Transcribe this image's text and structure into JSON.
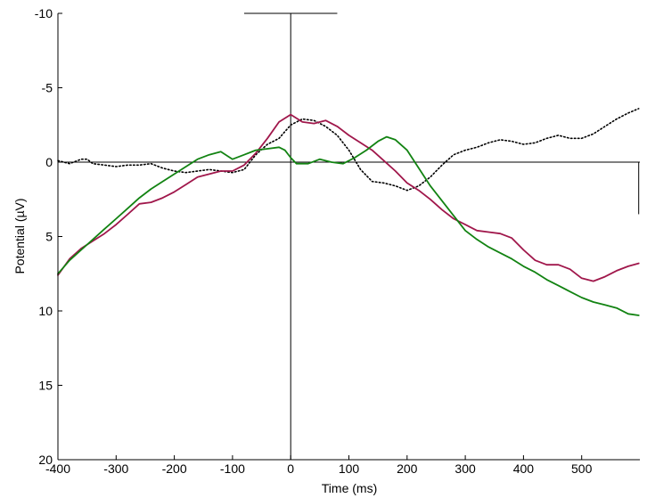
{
  "chart_data": {
    "type": "line",
    "title": "",
    "xlabel": "Time (ms)",
    "ylabel": "Potential (µV)",
    "xlim": [
      -400,
      600
    ],
    "ylim": [
      -10,
      20
    ],
    "y_axis_inverted": true,
    "grid": false,
    "legend": "none",
    "x_ticks": [
      -400,
      -300,
      -200,
      -100,
      0,
      100,
      200,
      300,
      400,
      500
    ],
    "x_tick_labels": [
      "-400",
      "-300",
      "-200",
      "-100",
      "0",
      "100",
      "200",
      "300",
      "400",
      "500"
    ],
    "y_ticks": [
      -10,
      -5,
      0,
      5,
      10,
      15,
      20
    ],
    "y_tick_labels": [
      "-10",
      "-5",
      "0",
      "5",
      "10",
      "15",
      "20"
    ],
    "reference_lines": {
      "zero_time_vertical": 0,
      "zero_potential_horizontal": 0,
      "scale_bar_top": {
        "x_from": -80,
        "x_to": 80,
        "y": -10
      },
      "scale_bar_right": {
        "x": 598,
        "y_from": 0,
        "y_to": 3.5
      }
    },
    "series": [
      {
        "color": "#000000",
        "style": "dotted",
        "points": [
          [
            -400,
            -0.1
          ],
          [
            -380,
            0.1
          ],
          [
            -360,
            -0.2
          ],
          [
            -350,
            -0.2
          ],
          [
            -340,
            0.1
          ],
          [
            -320,
            0.2
          ],
          [
            -300,
            0.3
          ],
          [
            -280,
            0.2
          ],
          [
            -260,
            0.2
          ],
          [
            -240,
            0.1
          ],
          [
            -220,
            0.4
          ],
          [
            -200,
            0.6
          ],
          [
            -180,
            0.7
          ],
          [
            -160,
            0.6
          ],
          [
            -140,
            0.5
          ],
          [
            -120,
            0.6
          ],
          [
            -100,
            0.7
          ],
          [
            -80,
            0.5
          ],
          [
            -60,
            -0.5
          ],
          [
            -40,
            -1.2
          ],
          [
            -20,
            -1.6
          ],
          [
            0,
            -2.5
          ],
          [
            20,
            -2.9
          ],
          [
            40,
            -2.8
          ],
          [
            60,
            -2.4
          ],
          [
            80,
            -1.8
          ],
          [
            100,
            -0.8
          ],
          [
            120,
            0.5
          ],
          [
            140,
            1.3
          ],
          [
            160,
            1.4
          ],
          [
            180,
            1.6
          ],
          [
            200,
            1.9
          ],
          [
            220,
            1.6
          ],
          [
            240,
            1.0
          ],
          [
            260,
            0.2
          ],
          [
            280,
            -0.5
          ],
          [
            300,
            -0.8
          ],
          [
            320,
            -1.0
          ],
          [
            340,
            -1.3
          ],
          [
            360,
            -1.5
          ],
          [
            380,
            -1.4
          ],
          [
            400,
            -1.2
          ],
          [
            420,
            -1.3
          ],
          [
            440,
            -1.6
          ],
          [
            460,
            -1.8
          ],
          [
            480,
            -1.6
          ],
          [
            500,
            -1.6
          ],
          [
            520,
            -1.9
          ],
          [
            540,
            -2.4
          ],
          [
            560,
            -2.9
          ],
          [
            580,
            -3.3
          ],
          [
            598,
            -3.6
          ]
        ]
      },
      {
        "color": "#a0174b",
        "style": "solid",
        "points": [
          [
            -400,
            7.6
          ],
          [
            -380,
            6.5
          ],
          [
            -360,
            5.8
          ],
          [
            -340,
            5.3
          ],
          [
            -320,
            4.8
          ],
          [
            -300,
            4.2
          ],
          [
            -280,
            3.5
          ],
          [
            -260,
            2.8
          ],
          [
            -240,
            2.7
          ],
          [
            -220,
            2.4
          ],
          [
            -200,
            2.0
          ],
          [
            -180,
            1.5
          ],
          [
            -160,
            1.0
          ],
          [
            -140,
            0.8
          ],
          [
            -120,
            0.6
          ],
          [
            -100,
            0.6
          ],
          [
            -80,
            0.2
          ],
          [
            -60,
            -0.6
          ],
          [
            -40,
            -1.6
          ],
          [
            -20,
            -2.7
          ],
          [
            0,
            -3.2
          ],
          [
            20,
            -2.7
          ],
          [
            40,
            -2.6
          ],
          [
            60,
            -2.8
          ],
          [
            80,
            -2.4
          ],
          [
            100,
            -1.8
          ],
          [
            120,
            -1.3
          ],
          [
            140,
            -0.8
          ],
          [
            160,
            -0.1
          ],
          [
            180,
            0.6
          ],
          [
            200,
            1.4
          ],
          [
            220,
            1.9
          ],
          [
            240,
            2.5
          ],
          [
            260,
            3.2
          ],
          [
            280,
            3.8
          ],
          [
            300,
            4.2
          ],
          [
            320,
            4.6
          ],
          [
            340,
            4.7
          ],
          [
            360,
            4.8
          ],
          [
            380,
            5.1
          ],
          [
            400,
            5.9
          ],
          [
            420,
            6.6
          ],
          [
            440,
            6.9
          ],
          [
            460,
            6.9
          ],
          [
            480,
            7.2
          ],
          [
            500,
            7.8
          ],
          [
            520,
            8.0
          ],
          [
            540,
            7.7
          ],
          [
            560,
            7.3
          ],
          [
            580,
            7.0
          ],
          [
            598,
            6.8
          ]
        ]
      },
      {
        "color": "#128312",
        "style": "solid",
        "points": [
          [
            -400,
            7.5
          ],
          [
            -380,
            6.6
          ],
          [
            -360,
            5.9
          ],
          [
            -340,
            5.2
          ],
          [
            -320,
            4.5
          ],
          [
            -300,
            3.8
          ],
          [
            -280,
            3.1
          ],
          [
            -260,
            2.4
          ],
          [
            -240,
            1.8
          ],
          [
            -220,
            1.3
          ],
          [
            -200,
            0.8
          ],
          [
            -180,
            0.3
          ],
          [
            -160,
            -0.2
          ],
          [
            -140,
            -0.5
          ],
          [
            -120,
            -0.7
          ],
          [
            -100,
            -0.2
          ],
          [
            -80,
            -0.5
          ],
          [
            -60,
            -0.8
          ],
          [
            -40,
            -0.9
          ],
          [
            -20,
            -1.0
          ],
          [
            -10,
            -0.8
          ],
          [
            0,
            -0.3
          ],
          [
            10,
            0.1
          ],
          [
            30,
            0.1
          ],
          [
            50,
            -0.2
          ],
          [
            70,
            0.0
          ],
          [
            90,
            0.1
          ],
          [
            110,
            -0.3
          ],
          [
            130,
            -0.8
          ],
          [
            150,
            -1.4
          ],
          [
            165,
            -1.7
          ],
          [
            180,
            -1.5
          ],
          [
            200,
            -0.8
          ],
          [
            220,
            0.4
          ],
          [
            240,
            1.6
          ],
          [
            260,
            2.6
          ],
          [
            280,
            3.6
          ],
          [
            300,
            4.6
          ],
          [
            320,
            5.2
          ],
          [
            340,
            5.7
          ],
          [
            360,
            6.1
          ],
          [
            380,
            6.5
          ],
          [
            400,
            7.0
          ],
          [
            420,
            7.4
          ],
          [
            440,
            7.9
          ],
          [
            460,
            8.3
          ],
          [
            480,
            8.7
          ],
          [
            500,
            9.1
          ],
          [
            520,
            9.4
          ],
          [
            540,
            9.6
          ],
          [
            560,
            9.8
          ],
          [
            580,
            10.2
          ],
          [
            598,
            10.3
          ]
        ]
      }
    ]
  }
}
